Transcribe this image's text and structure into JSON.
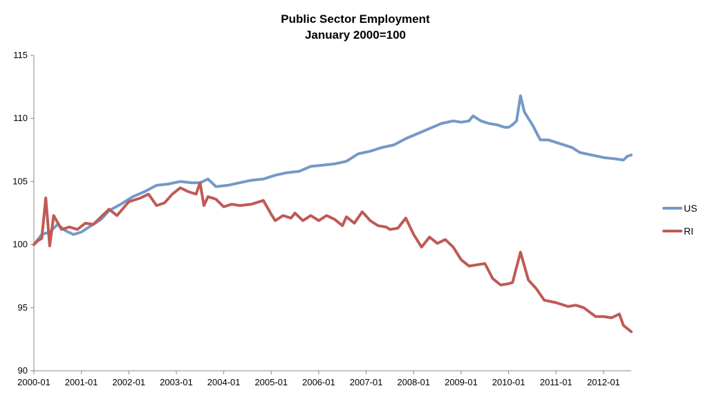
{
  "chart_data": {
    "type": "line",
    "title": "Public Sector Employment",
    "subtitle": "January 2000=100",
    "xlabel": "",
    "ylabel": "",
    "ylim": [
      90,
      115
    ],
    "yticks": [
      90,
      95,
      100,
      105,
      110,
      115
    ],
    "x_tick_labels": [
      "2000-01",
      "2001-01",
      "2002-01",
      "2003-01",
      "2004-01",
      "2005-01",
      "2006-01",
      "2007-01",
      "2008-01",
      "2009-01",
      "2010-01",
      "2011-01",
      "2012-01"
    ],
    "x_start": "2000-01",
    "x_end": "2012-08",
    "grid": false,
    "legend_position": "right",
    "series": [
      {
        "name": "US",
        "color": "#7399c6",
        "points": [
          [
            "2000-01",
            100.0
          ],
          [
            "2000-03",
            100.8
          ],
          [
            "2000-05",
            101.0
          ],
          [
            "2000-07",
            101.6
          ],
          [
            "2000-09",
            101.1
          ],
          [
            "2000-11",
            100.8
          ],
          [
            "2001-01",
            101.0
          ],
          [
            "2001-04",
            101.6
          ],
          [
            "2001-06",
            102.0
          ],
          [
            "2001-08",
            102.7
          ],
          [
            "2001-11",
            103.2
          ],
          [
            "2002-02",
            103.8
          ],
          [
            "2002-05",
            104.2
          ],
          [
            "2002-08",
            104.7
          ],
          [
            "2002-11",
            104.8
          ],
          [
            "2003-02",
            105.0
          ],
          [
            "2003-05",
            104.9
          ],
          [
            "2003-07",
            104.9
          ],
          [
            "2003-09",
            105.2
          ],
          [
            "2003-11",
            104.6
          ],
          [
            "2004-02",
            104.7
          ],
          [
            "2004-05",
            104.9
          ],
          [
            "2004-08",
            105.1
          ],
          [
            "2004-11",
            105.2
          ],
          [
            "2005-02",
            105.5
          ],
          [
            "2005-05",
            105.7
          ],
          [
            "2005-08",
            105.8
          ],
          [
            "2005-11",
            106.2
          ],
          [
            "2006-02",
            106.3
          ],
          [
            "2006-05",
            106.4
          ],
          [
            "2006-08",
            106.6
          ],
          [
            "2006-11",
            107.2
          ],
          [
            "2007-02",
            107.4
          ],
          [
            "2007-05",
            107.7
          ],
          [
            "2007-08",
            107.9
          ],
          [
            "2007-11",
            108.4
          ],
          [
            "2008-02",
            108.8
          ],
          [
            "2008-05",
            109.2
          ],
          [
            "2008-08",
            109.6
          ],
          [
            "2008-11",
            109.8
          ],
          [
            "2009-01",
            109.7
          ],
          [
            "2009-03",
            109.8
          ],
          [
            "2009-04",
            110.2
          ],
          [
            "2009-06",
            109.8
          ],
          [
            "2009-08",
            109.6
          ],
          [
            "2009-10",
            109.5
          ],
          [
            "2009-12",
            109.3
          ],
          [
            "2010-01",
            109.3
          ],
          [
            "2010-02",
            109.5
          ],
          [
            "2010-03",
            109.8
          ],
          [
            "2010-04",
            111.8
          ],
          [
            "2010-05",
            110.5
          ],
          [
            "2010-07",
            109.5
          ],
          [
            "2010-09",
            108.3
          ],
          [
            "2010-11",
            108.3
          ],
          [
            "2011-02",
            108.0
          ],
          [
            "2011-05",
            107.7
          ],
          [
            "2011-07",
            107.3
          ],
          [
            "2011-10",
            107.1
          ],
          [
            "2012-01",
            106.9
          ],
          [
            "2012-04",
            106.8
          ],
          [
            "2012-06",
            106.7
          ],
          [
            "2012-07",
            107.0
          ],
          [
            "2012-08",
            107.1
          ]
        ]
      },
      {
        "name": "RI",
        "color": "#bf5a55",
        "points": [
          [
            "2000-01",
            100.0
          ],
          [
            "2000-02",
            100.3
          ],
          [
            "2000-03",
            100.5
          ],
          [
            "2000-04",
            103.7
          ],
          [
            "2000-05",
            99.9
          ],
          [
            "2000-06",
            102.3
          ],
          [
            "2000-08",
            101.2
          ],
          [
            "2000-10",
            101.4
          ],
          [
            "2000-12",
            101.2
          ],
          [
            "2001-02",
            101.7
          ],
          [
            "2001-04",
            101.6
          ],
          [
            "2001-06",
            102.2
          ],
          [
            "2001-08",
            102.8
          ],
          [
            "2001-10",
            102.3
          ],
          [
            "2002-01",
            103.4
          ],
          [
            "2002-04",
            103.7
          ],
          [
            "2002-06",
            104.0
          ],
          [
            "2002-08",
            103.1
          ],
          [
            "2002-10",
            103.3
          ],
          [
            "2002-12",
            104.0
          ],
          [
            "2003-02",
            104.5
          ],
          [
            "2003-04",
            104.2
          ],
          [
            "2003-06",
            104.0
          ],
          [
            "2003-07",
            104.9
          ],
          [
            "2003-08",
            103.1
          ],
          [
            "2003-09",
            103.8
          ],
          [
            "2003-11",
            103.6
          ],
          [
            "2004-01",
            103.0
          ],
          [
            "2004-03",
            103.2
          ],
          [
            "2004-05",
            103.1
          ],
          [
            "2004-08",
            103.2
          ],
          [
            "2004-11",
            103.5
          ],
          [
            "2005-01",
            102.4
          ],
          [
            "2005-02",
            101.9
          ],
          [
            "2005-04",
            102.3
          ],
          [
            "2005-06",
            102.1
          ],
          [
            "2005-07",
            102.5
          ],
          [
            "2005-09",
            101.9
          ],
          [
            "2005-11",
            102.3
          ],
          [
            "2006-01",
            101.9
          ],
          [
            "2006-03",
            102.3
          ],
          [
            "2006-05",
            102.0
          ],
          [
            "2006-07",
            101.5
          ],
          [
            "2006-08",
            102.2
          ],
          [
            "2006-10",
            101.7
          ],
          [
            "2006-12",
            102.6
          ],
          [
            "2007-02",
            101.9
          ],
          [
            "2007-04",
            101.5
          ],
          [
            "2007-06",
            101.4
          ],
          [
            "2007-07",
            101.2
          ],
          [
            "2007-09",
            101.3
          ],
          [
            "2007-11",
            102.1
          ],
          [
            "2008-01",
            100.8
          ],
          [
            "2008-03",
            99.8
          ],
          [
            "2008-05",
            100.6
          ],
          [
            "2008-07",
            100.1
          ],
          [
            "2008-09",
            100.4
          ],
          [
            "2008-11",
            99.8
          ],
          [
            "2009-01",
            98.8
          ],
          [
            "2009-03",
            98.3
          ],
          [
            "2009-05",
            98.4
          ],
          [
            "2009-07",
            98.5
          ],
          [
            "2009-09",
            97.3
          ],
          [
            "2009-11",
            96.8
          ],
          [
            "2010-01",
            96.9
          ],
          [
            "2010-02",
            97.0
          ],
          [
            "2010-04",
            99.4
          ],
          [
            "2010-06",
            97.2
          ],
          [
            "2010-08",
            96.5
          ],
          [
            "2010-10",
            95.6
          ],
          [
            "2011-01",
            95.4
          ],
          [
            "2011-04",
            95.1
          ],
          [
            "2011-06",
            95.2
          ],
          [
            "2011-08",
            95.0
          ],
          [
            "2011-11",
            94.3
          ],
          [
            "2012-01",
            94.3
          ],
          [
            "2012-03",
            94.2
          ],
          [
            "2012-05",
            94.5
          ],
          [
            "2012-06",
            93.6
          ],
          [
            "2012-08",
            93.1
          ]
        ]
      }
    ]
  }
}
